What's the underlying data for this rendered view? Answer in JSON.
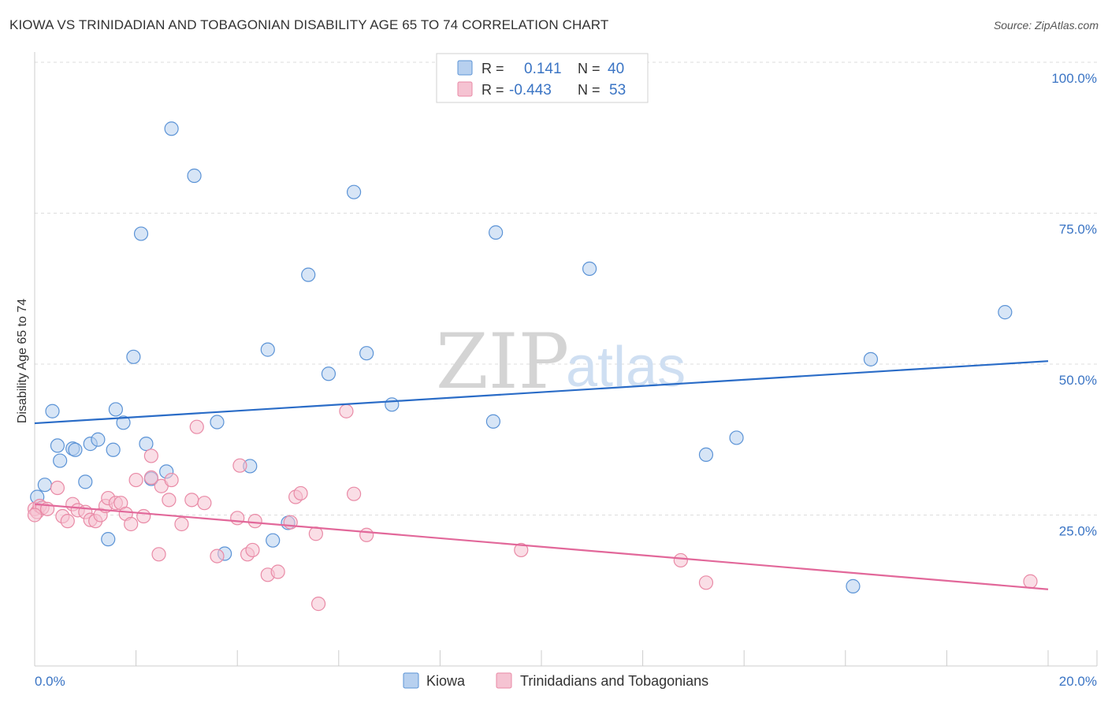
{
  "title": "KIOWA VS TRINIDADIAN AND TOBAGONIAN DISABILITY AGE 65 TO 74 CORRELATION CHART",
  "source": "Source: ZipAtlas.com",
  "watermark": {
    "zip": "ZIP",
    "atlas": "atlas"
  },
  "colors": {
    "kiowa": "#5b93d6",
    "kiowa_fill": "#b7d0ef",
    "kiowa_line": "#2a6cc7",
    "trin": "#e98aa6",
    "trin_fill": "#f5c3d2",
    "trin_line": "#e2689a",
    "axis_text": "#3a74c4",
    "grid": "#dddddd"
  },
  "legend": {
    "rows": [
      {
        "r_label": "R =",
        "r_value": "0.141",
        "n_label": "N =",
        "n_value": "40"
      },
      {
        "r_label": "R =",
        "r_value": "-0.443",
        "n_label": "N =",
        "n_value": "53"
      }
    ]
  },
  "chart_data": {
    "type": "scatter",
    "title": "KIOWA VS TRINIDADIAN AND TOBAGONIAN DISABILITY AGE 65 TO 74 CORRELATION CHART",
    "xlabel": "",
    "ylabel": "Disability Age 65 to 74",
    "xlim": [
      0,
      20
    ],
    "ylim": [
      0,
      100
    ],
    "x_tick_labels": [
      "0.0%",
      "20.0%"
    ],
    "y_tick_labels": [
      "100.0%",
      "75.0%",
      "50.0%",
      "25.0%"
    ],
    "y_ticks": [
      100,
      75,
      50,
      25
    ],
    "grid": true,
    "legend_position": "top-center",
    "series": [
      {
        "name": "Kiowa",
        "r": 0.141,
        "n": 40,
        "trend": {
          "x": [
            0,
            20
          ],
          "y": [
            40.2,
            50.5
          ]
        },
        "points": [
          [
            0.05,
            28.0
          ],
          [
            0.2,
            30.0
          ],
          [
            0.35,
            42.2
          ],
          [
            0.45,
            36.5
          ],
          [
            0.5,
            34.0
          ],
          [
            0.75,
            36.0
          ],
          [
            0.8,
            35.8
          ],
          [
            1.0,
            30.5
          ],
          [
            1.1,
            36.8
          ],
          [
            1.25,
            37.5
          ],
          [
            1.45,
            21.0
          ],
          [
            1.55,
            35.8
          ],
          [
            1.6,
            42.5
          ],
          [
            1.75,
            40.3
          ],
          [
            1.95,
            51.2
          ],
          [
            2.1,
            71.6
          ],
          [
            2.2,
            36.8
          ],
          [
            2.3,
            31.0
          ],
          [
            2.6,
            32.2
          ],
          [
            2.7,
            89.0
          ],
          [
            3.15,
            81.2
          ],
          [
            3.6,
            40.4
          ],
          [
            3.75,
            18.6
          ],
          [
            4.25,
            33.1
          ],
          [
            4.6,
            52.4
          ],
          [
            4.7,
            20.8
          ],
          [
            5.0,
            23.7
          ],
          [
            5.4,
            64.8
          ],
          [
            5.8,
            48.4
          ],
          [
            6.3,
            78.5
          ],
          [
            6.55,
            51.8
          ],
          [
            7.05,
            43.3
          ],
          [
            9.05,
            40.5
          ],
          [
            9.1,
            71.8
          ],
          [
            10.95,
            65.8
          ],
          [
            13.25,
            35.0
          ],
          [
            13.85,
            37.8
          ],
          [
            16.15,
            13.2
          ],
          [
            16.5,
            50.8
          ],
          [
            19.15,
            58.6
          ]
        ]
      },
      {
        "name": "Trinidadians and Tobagonians",
        "r": -0.443,
        "n": 53,
        "trend": {
          "x": [
            0,
            20
          ],
          "y": [
            26.8,
            12.7
          ]
        },
        "points": [
          [
            0.0,
            26.0
          ],
          [
            0.05,
            25.5
          ],
          [
            0.1,
            26.5
          ],
          [
            0.15,
            26.2
          ],
          [
            0.25,
            26.0
          ],
          [
            0.45,
            29.5
          ],
          [
            0.55,
            24.8
          ],
          [
            0.65,
            24.0
          ],
          [
            0.75,
            26.8
          ],
          [
            0.85,
            25.8
          ],
          [
            1.0,
            25.5
          ],
          [
            1.1,
            24.2
          ],
          [
            1.2,
            24.0
          ],
          [
            1.3,
            25.0
          ],
          [
            1.4,
            26.5
          ],
          [
            1.45,
            27.8
          ],
          [
            1.6,
            27.0
          ],
          [
            1.7,
            27.0
          ],
          [
            1.8,
            25.2
          ],
          [
            1.9,
            23.5
          ],
          [
            2.0,
            30.8
          ],
          [
            2.15,
            24.8
          ],
          [
            2.3,
            31.2
          ],
          [
            2.3,
            34.8
          ],
          [
            2.45,
            18.5
          ],
          [
            2.5,
            29.8
          ],
          [
            2.65,
            27.5
          ],
          [
            2.7,
            30.8
          ],
          [
            2.9,
            23.5
          ],
          [
            3.1,
            27.5
          ],
          [
            3.2,
            39.6
          ],
          [
            3.35,
            27.0
          ],
          [
            3.6,
            18.2
          ],
          [
            4.0,
            24.5
          ],
          [
            4.05,
            33.2
          ],
          [
            4.2,
            18.5
          ],
          [
            4.3,
            19.2
          ],
          [
            4.35,
            24.0
          ],
          [
            4.6,
            15.1
          ],
          [
            4.8,
            15.6
          ],
          [
            5.05,
            23.8
          ],
          [
            5.15,
            28.0
          ],
          [
            5.25,
            28.6
          ],
          [
            5.55,
            21.9
          ],
          [
            5.6,
            10.3
          ],
          [
            6.15,
            42.2
          ],
          [
            6.3,
            28.5
          ],
          [
            6.55,
            21.7
          ],
          [
            9.6,
            19.2
          ],
          [
            12.75,
            17.5
          ],
          [
            13.25,
            13.8
          ],
          [
            19.65,
            14.0
          ],
          [
            0.0,
            25.0
          ]
        ]
      }
    ]
  },
  "bottom_legend": [
    {
      "label": "Kiowa"
    },
    {
      "label": "Trinidadians and Tobagonians"
    }
  ]
}
